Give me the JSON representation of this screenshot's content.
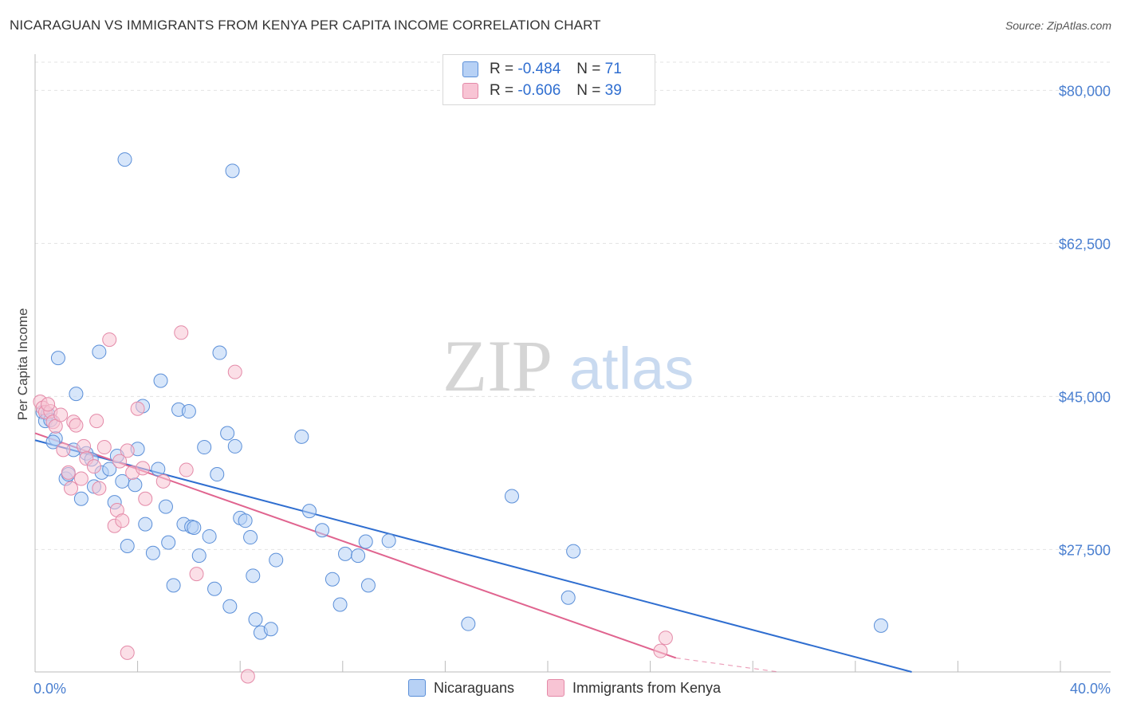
{
  "title": "NICARAGUAN VS IMMIGRANTS FROM KENYA PER CAPITA INCOME CORRELATION CHART",
  "source": "Source: ZipAtlas.com",
  "watermark": {
    "zip": "ZIP",
    "atlas": "atlas"
  },
  "legend": {
    "r_label": "R =",
    "n_label": "N =",
    "rows": [
      {
        "r": "-0.484",
        "n": "71"
      },
      {
        "r": "-0.606",
        "n": "39"
      }
    ]
  },
  "bottom_legend": [
    "Nicaraguans",
    "Immigrants from Kenya"
  ],
  "colors": {
    "blue_fill": "#b7d1f5",
    "blue_stroke": "#5b8fd8",
    "blue_line": "#2f6ed0",
    "pink_fill": "#f8c4d4",
    "pink_stroke": "#e48aa8",
    "pink_line": "#e0648f",
    "tick_label": "#4a7fd0",
    "grid": "#e3e3e3"
  },
  "chart_data": {
    "type": "scatter",
    "title": "NICARAGUAN VS IMMIGRANTS FROM KENYA PER CAPITA INCOME CORRELATION CHART",
    "xlabel": "",
    "ylabel": "Per Capita Income",
    "xlim": [
      0,
      40
    ],
    "ylim": [
      13500,
      83500
    ],
    "x_tick_labels": [
      {
        "value": 0,
        "label": "0.0%"
      },
      {
        "value": 40,
        "label": "40.0%"
      }
    ],
    "y_ticks": [
      {
        "value": 27500,
        "label": "$27,500"
      },
      {
        "value": 45000,
        "label": "$45,000"
      },
      {
        "value": 62500,
        "label": "$62,500"
      },
      {
        "value": 80000,
        "label": "$80,000"
      }
    ],
    "grid": true,
    "legend_position": "top-center",
    "series": [
      {
        "name": "Nicaraguans",
        "r": -0.484,
        "n": 71,
        "trend": {
          "x": [
            0,
            34.2
          ],
          "y": [
            40000,
            13500
          ]
        },
        "points": [
          [
            0.3,
            43200
          ],
          [
            0.5,
            43000
          ],
          [
            0.4,
            42200
          ],
          [
            0.6,
            42300
          ],
          [
            0.8,
            40200
          ],
          [
            0.7,
            39800
          ],
          [
            0.9,
            49400
          ],
          [
            1.6,
            45300
          ],
          [
            1.2,
            35600
          ],
          [
            1.3,
            36100
          ],
          [
            1.5,
            38900
          ],
          [
            1.8,
            33300
          ],
          [
            2.0,
            38500
          ],
          [
            2.2,
            37800
          ],
          [
            2.3,
            34700
          ],
          [
            2.5,
            50100
          ],
          [
            2.6,
            36300
          ],
          [
            2.9,
            36700
          ],
          [
            3.2,
            38200
          ],
          [
            3.1,
            32900
          ],
          [
            3.4,
            35300
          ],
          [
            3.6,
            27900
          ],
          [
            3.9,
            34900
          ],
          [
            4.0,
            39000
          ],
          [
            4.2,
            43900
          ],
          [
            4.3,
            30400
          ],
          [
            4.6,
            27100
          ],
          [
            4.8,
            36700
          ],
          [
            4.9,
            46800
          ],
          [
            5.1,
            32400
          ],
          [
            5.2,
            28300
          ],
          [
            5.4,
            23400
          ],
          [
            5.6,
            43500
          ],
          [
            5.8,
            30400
          ],
          [
            6.0,
            43300
          ],
          [
            6.1,
            30100
          ],
          [
            6.2,
            30000
          ],
          [
            6.4,
            26800
          ],
          [
            6.6,
            39200
          ],
          [
            6.8,
            29000
          ],
          [
            7.0,
            23000
          ],
          [
            7.1,
            36100
          ],
          [
            7.2,
            50000
          ],
          [
            7.5,
            40800
          ],
          [
            7.6,
            21000
          ],
          [
            7.8,
            39300
          ],
          [
            8.0,
            31100
          ],
          [
            8.2,
            30800
          ],
          [
            8.4,
            28900
          ],
          [
            8.5,
            24500
          ],
          [
            8.6,
            19500
          ],
          [
            8.8,
            18000
          ],
          [
            9.2,
            18400
          ],
          [
            9.4,
            26300
          ],
          [
            10.4,
            40400
          ],
          [
            10.7,
            31900
          ],
          [
            11.2,
            29700
          ],
          [
            11.6,
            24100
          ],
          [
            11.9,
            21200
          ],
          [
            12.1,
            27000
          ],
          [
            12.6,
            26800
          ],
          [
            12.9,
            28400
          ],
          [
            13.0,
            23400
          ],
          [
            13.8,
            28500
          ],
          [
            16.9,
            19000
          ],
          [
            18.6,
            33600
          ],
          [
            20.8,
            22000
          ],
          [
            21.0,
            27300
          ],
          [
            33.0,
            18800
          ],
          [
            3.5,
            72100
          ],
          [
            7.7,
            70800
          ]
        ]
      },
      {
        "name": "Immigrants from Kenya",
        "r": -0.606,
        "n": 39,
        "trend": {
          "x": [
            0,
            25.0
          ],
          "y": [
            40800,
            15100
          ]
        },
        "trend_dashed": {
          "x": [
            25.0,
            29.0
          ],
          "y": [
            15100,
            13500
          ]
        },
        "points": [
          [
            0.2,
            44400
          ],
          [
            0.3,
            43700
          ],
          [
            0.4,
            43200
          ],
          [
            0.6,
            43300
          ],
          [
            0.7,
            42100
          ],
          [
            0.8,
            41600
          ],
          [
            1.0,
            42900
          ],
          [
            1.1,
            38900
          ],
          [
            1.3,
            36300
          ],
          [
            1.4,
            34500
          ],
          [
            1.5,
            42100
          ],
          [
            1.6,
            41700
          ],
          [
            1.8,
            35600
          ],
          [
            1.9,
            39300
          ],
          [
            2.0,
            37900
          ],
          [
            2.3,
            37000
          ],
          [
            2.4,
            42200
          ],
          [
            2.5,
            34500
          ],
          [
            2.7,
            39200
          ],
          [
            2.9,
            51500
          ],
          [
            3.1,
            30200
          ],
          [
            3.2,
            32000
          ],
          [
            3.4,
            30800
          ],
          [
            3.6,
            38800
          ],
          [
            3.6,
            15700
          ],
          [
            3.8,
            36300
          ],
          [
            4.0,
            43600
          ],
          [
            4.2,
            36800
          ],
          [
            4.3,
            33300
          ],
          [
            5.0,
            35300
          ],
          [
            5.7,
            52300
          ],
          [
            5.9,
            36600
          ],
          [
            6.3,
            24700
          ],
          [
            7.8,
            47800
          ],
          [
            8.3,
            13000
          ],
          [
            24.6,
            17400
          ],
          [
            24.4,
            15900
          ],
          [
            3.3,
            37600
          ],
          [
            0.5,
            44100
          ]
        ]
      }
    ]
  }
}
